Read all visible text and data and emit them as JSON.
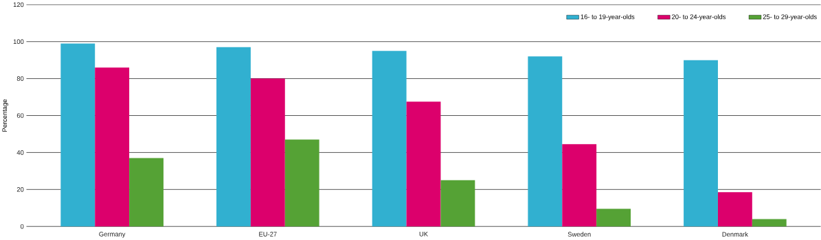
{
  "chart_data": {
    "type": "bar",
    "ylabel": "Percentage",
    "categories": [
      "Germany",
      "EU-27",
      "UK",
      "Sweden",
      "Denmark"
    ],
    "series": [
      {
        "name": "16- to 19-year-olds",
        "color": "#31b0d0",
        "values": [
          99,
          97,
          95,
          92,
          90
        ]
      },
      {
        "name": "20- to 24-year-olds",
        "color": "#dc006c",
        "values": [
          86,
          80,
          67.5,
          44.5,
          18.5
        ]
      },
      {
        "name": "25- to 29-year-olds",
        "color": "#55a235",
        "values": [
          37,
          47,
          25,
          9.5,
          4
        ]
      }
    ],
    "ylim": [
      0,
      120
    ],
    "yticks": [
      0,
      20,
      40,
      60,
      80,
      100,
      120
    ],
    "grid": "y",
    "legend": "top right"
  }
}
